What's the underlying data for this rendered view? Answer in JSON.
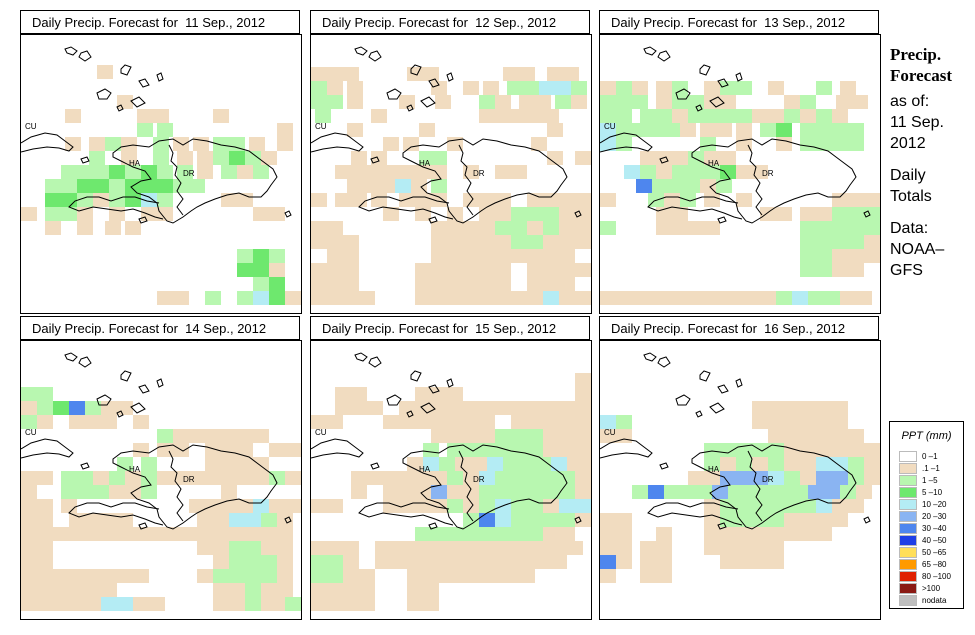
{
  "panels": [
    {
      "title": "Daily Precip. Forecast for  11 Sep., 2012"
    },
    {
      "title": "Daily Precip. Forecast for  12 Sep., 2012"
    },
    {
      "title": "Daily Precip. Forecast for  13 Sep., 2012"
    },
    {
      "title": "Daily Precip. Forecast for  14 Sep., 2012"
    },
    {
      "title": "Daily Precip. Forecast for  15 Sep., 2012"
    },
    {
      "title": "Daily Precip. Forecast for  16 Sep., 2012"
    }
  ],
  "map_labels": {
    "cu": "CU",
    "ha": "HA",
    "dr": "DR"
  },
  "side": {
    "title_line1": "Precip.",
    "title_line2": "Forecast",
    "asof": "as of:",
    "date_line1": "11 Sep.",
    "date_line2": "2012",
    "totals_line1": "Daily",
    "totals_line2": "Totals",
    "data_line1": "Data:",
    "data_line2": "NOAA–",
    "data_line3": "GFS"
  },
  "legend": {
    "title": "PPT (mm)",
    "items": [
      {
        "label": "0 –1",
        "color": "#ffffff"
      },
      {
        "label": ".1 –1",
        "color": "#f1dcc0"
      },
      {
        "label": "1 –5",
        "color": "#b8f7b0"
      },
      {
        "label": "5 –10",
        "color": "#6ee86e"
      },
      {
        "label": "10 –20",
        "color": "#b4ecf4"
      },
      {
        "label": "20 –30",
        "color": "#8ab4f2"
      },
      {
        "label": "30 –40",
        "color": "#4e86ee"
      },
      {
        "label": "40 –50",
        "color": "#1f3fe6"
      },
      {
        "label": "50 –65",
        "color": "#ffdf5a"
      },
      {
        "label": "65 –80",
        "color": "#ff9a00"
      },
      {
        "label": "80 –100",
        "color": "#e02000"
      },
      {
        "label": ">100",
        "color": "#8a1a14"
      },
      {
        "label": "nodata",
        "color": "#bfbfbf"
      }
    ]
  }
}
